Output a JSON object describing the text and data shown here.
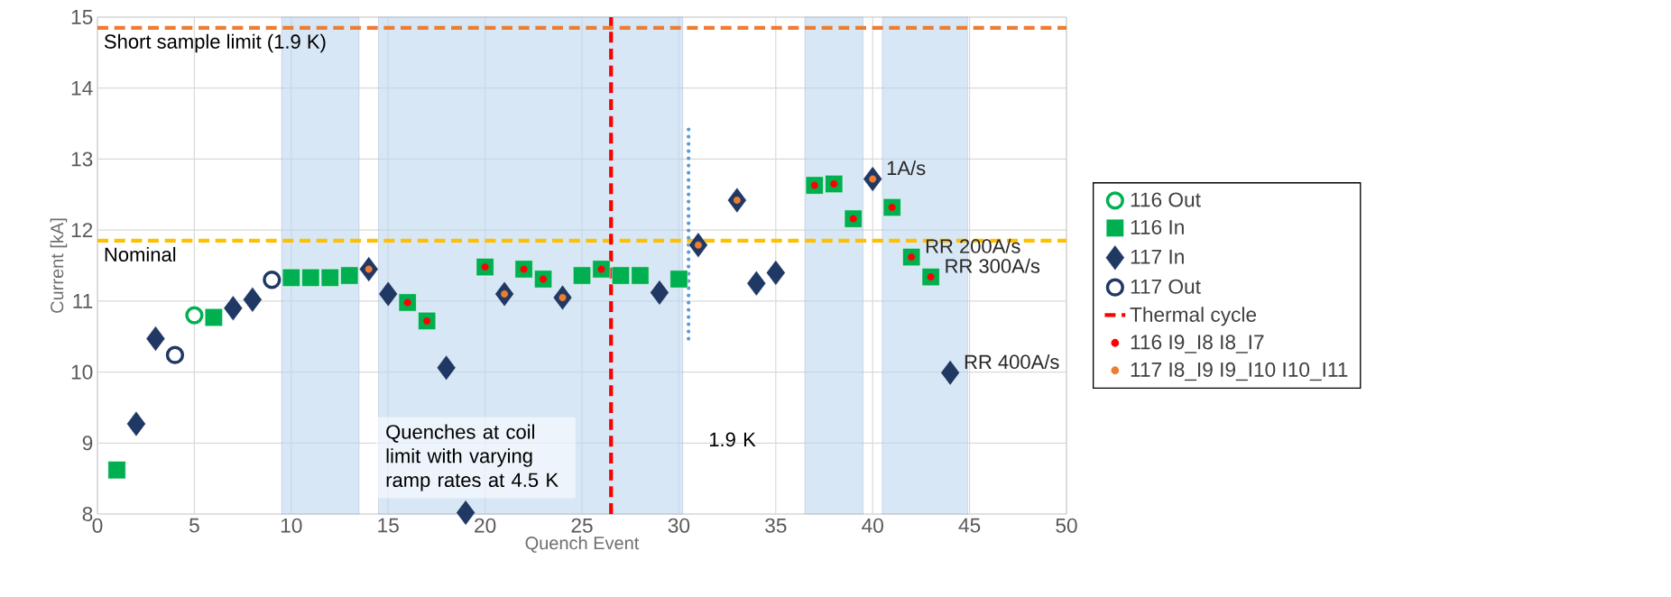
{
  "chart_data": {
    "type": "scatter",
    "xlabel": "Quench Event",
    "ylabel": "Current [kA]",
    "xlim": [
      0,
      50
    ],
    "xticks": [
      0,
      5,
      10,
      15,
      20,
      25,
      30,
      35,
      40,
      45,
      50
    ],
    "ylim": [
      8,
      15
    ],
    "yticks": [
      8,
      9,
      10,
      11,
      12,
      13,
      14,
      15
    ],
    "grid": true,
    "legend": "right",
    "series": [
      {
        "name": "116 Out",
        "color": "#00b050",
        "marker": "circle",
        "x": [
          5
        ],
        "values": [
          10.8
        ]
      },
      {
        "name": "116 In",
        "color": "#00b050",
        "marker": "square",
        "x": [
          1,
          6,
          10,
          11,
          12,
          13,
          16,
          17,
          20,
          22,
          23,
          25,
          26,
          27,
          28,
          30,
          37,
          38,
          39,
          41,
          42,
          43
        ],
        "values": [
          8.62,
          10.77,
          11.33,
          11.33,
          11.33,
          11.36,
          10.98,
          10.72,
          11.48,
          11.45,
          11.31,
          11.36,
          11.45,
          11.36,
          11.36,
          11.31,
          12.63,
          12.65,
          12.16,
          12.32,
          11.62,
          11.34
        ]
      },
      {
        "name": "117 In",
        "color": "#203864",
        "marker": "diamond",
        "x": [
          2,
          3,
          7,
          8,
          14,
          15,
          18,
          19,
          21,
          24,
          29,
          31,
          33,
          34,
          35,
          40,
          44
        ],
        "values": [
          9.27,
          10.47,
          10.9,
          11.02,
          11.45,
          11.1,
          10.06,
          8.02,
          11.1,
          11.05,
          11.12,
          11.79,
          12.42,
          11.25,
          11.4,
          12.72,
          9.99
        ]
      },
      {
        "name": "117 Out",
        "color": "#203864",
        "marker": "circle",
        "x": [
          4,
          9
        ],
        "values": [
          10.24,
          11.3
        ]
      },
      {
        "name": "Thermal cycle",
        "type": "line",
        "color": "#ff0000",
        "line_style": "dashed",
        "marker": "none",
        "x": [
          26.5,
          26.5
        ],
        "values": [
          8,
          15
        ]
      },
      {
        "name": "116 I9_I8 I8_I7",
        "color": "#ff0000",
        "marker": "circle",
        "x": [
          16,
          17,
          20,
          22,
          23,
          26,
          37,
          38,
          39,
          41,
          42,
          43
        ],
        "values": [
          10.98,
          10.72,
          11.48,
          11.45,
          11.31,
          11.45,
          12.63,
          12.65,
          12.16,
          12.32,
          11.62,
          11.34
        ]
      },
      {
        "name": "117 I8_I9 I9_I10 I10_I11",
        "color": "#ed7d31",
        "marker": "circle",
        "x": [
          14,
          21,
          24,
          31,
          33,
          40
        ],
        "values": [
          11.45,
          11.1,
          11.05,
          11.79,
          12.42,
          12.72
        ]
      },
      {
        "type": "line",
        "color": "#5b9bd5",
        "line_style": "dotted",
        "marker": "none",
        "x": [
          30.5,
          30.5
        ],
        "values": [
          10.47,
          13.42
        ]
      }
    ],
    "ref_lines": [
      {
        "axis": "y",
        "value": 14.85,
        "label": "Short  sample limit (1.9 K)",
        "color": "#ed7d31",
        "line_style": "dashed"
      },
      {
        "axis": "y",
        "value": 11.85,
        "label": "Nominal",
        "color": "#ffc000",
        "line_style": "dashed"
      }
    ],
    "bands": [
      {
        "axis": "x",
        "from": 9.5,
        "to": 13.5,
        "color": "#bdd7ee"
      },
      {
        "axis": "x",
        "from": 14.5,
        "to": 30.2,
        "color": "#bdd7ee"
      },
      {
        "axis": "x",
        "from": 36.5,
        "to": 39.5,
        "color": "#bdd7ee"
      },
      {
        "axis": "x",
        "from": 40.5,
        "to": 44.9,
        "color": "#bdd7ee"
      }
    ],
    "annotations": [
      "Quenches at coil limit with varying ramp rates at 4.5 K",
      "1.9 K",
      {
        "text": "1A/s",
        "x": 40,
        "y": 12.72
      },
      {
        "text": "RR 200A/s",
        "x": 42,
        "y": 11.62
      },
      {
        "text": "RR 300A/s",
        "x": 43,
        "y": 11.34
      },
      {
        "text": "RR 400A/s",
        "x": 44,
        "y": 9.99
      }
    ]
  }
}
